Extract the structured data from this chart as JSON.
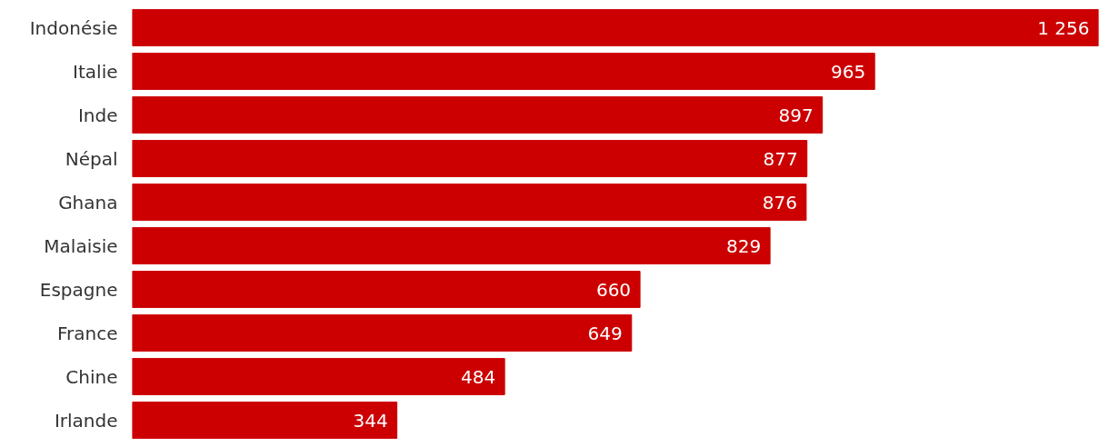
{
  "chart_data": {
    "type": "bar",
    "orientation": "horizontal",
    "categories": [
      "Indonésie",
      "Italie",
      "Inde",
      "Népal",
      "Ghana",
      "Malaisie",
      "Espagne",
      "France",
      "Chine",
      "Irlande"
    ],
    "values": [
      1256,
      965,
      897,
      877,
      876,
      829,
      660,
      649,
      484,
      344
    ],
    "value_labels": [
      "1 256",
      "965",
      "897",
      "877",
      "876",
      "829",
      "660",
      "649",
      "484",
      "344"
    ],
    "color": "#cc0000",
    "xlim": [
      0,
      1256
    ],
    "tick_labels": "y",
    "grid": false
  }
}
